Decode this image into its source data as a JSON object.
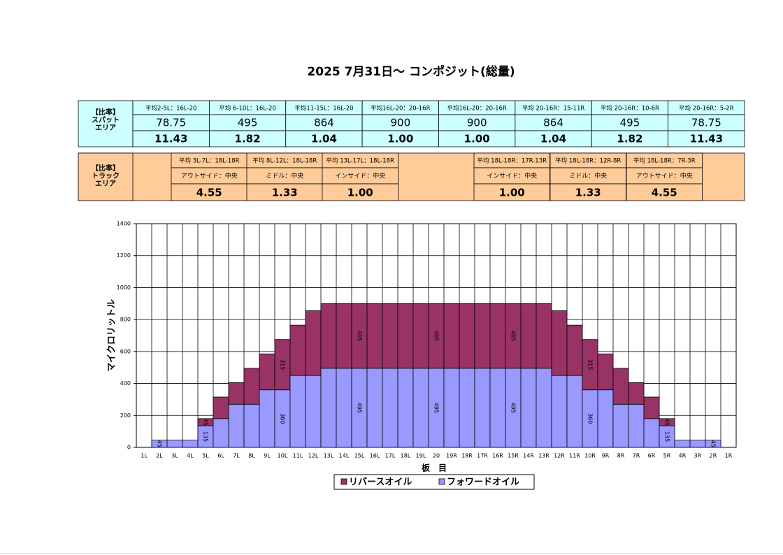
{
  "title": "2025 7月31日～ コンポジット(総量)",
  "spot_table": {
    "label": [
      "【比率】",
      "スパット",
      "エリア"
    ],
    "headers": [
      "平均2-5L：16L-20",
      "平均 6-10L：16L-20",
      "平均11-15L：16L-20",
      "平均16L-20：20-16R",
      "平均16L-20：20-16R",
      "平均 20-16R：15-11R",
      "平均 20-16R：10-6R",
      "平均 20-16R：5-2R"
    ],
    "rows": [
      [
        "78.75",
        "495",
        "864",
        "900",
        "900",
        "864",
        "495",
        "78.75"
      ],
      [
        "11.43",
        "1.82",
        "1.04",
        "1.00",
        "1.00",
        "1.04",
        "1.82",
        "11.43"
      ]
    ]
  },
  "track_table": {
    "label": [
      "【比率】",
      "トラック",
      "エリア"
    ],
    "headers": [
      "平均 3L-7L：18L-18R",
      "平均 8L-12L：18L-18R",
      "平均 13L-17L：18L-18R",
      "平均 18L-18R：17R-13R",
      "平均 18L-18R：12R-8R",
      "平均 18L-18R：7R-3R"
    ],
    "subheaders": [
      "アウトサイド：中央",
      "ミドル：中央",
      "インサイド：中央",
      "インサイド：中央",
      "ミドル：中央",
      "アウトサイド：中央"
    ],
    "values": [
      "4.55",
      "1.33",
      "1.00",
      "1.00",
      "1.33",
      "4.55"
    ]
  },
  "chart_data": {
    "type": "bar",
    "stacked": true,
    "grid": true,
    "legend": "bottom",
    "xlabel": "板　目",
    "ylabel": "マイクロリットル",
    "categories": [
      "1L",
      "2L",
      "3L",
      "4L",
      "5L",
      "6L",
      "7L",
      "8L",
      "9L",
      "10L",
      "11L",
      "12L",
      "13L",
      "14L",
      "15L",
      "16L",
      "17L",
      "18L",
      "19L",
      "20",
      "19R",
      "18R",
      "17R",
      "16R",
      "15R",
      "14R",
      "13R",
      "12R",
      "11R",
      "10R",
      "9R",
      "8R",
      "7R",
      "6R",
      "5R",
      "4R",
      "3R",
      "2R",
      "1R"
    ],
    "ylim": [
      0,
      1400
    ],
    "yticks": [
      0,
      200,
      400,
      600,
      800,
      1000,
      1200,
      1400
    ],
    "series": [
      {
        "name": "フォワードオイル",
        "color": "#9999ff",
        "values": [
          0,
          45,
          45,
          45,
          135,
          180,
          270,
          270,
          360,
          360,
          450,
          450,
          495,
          495,
          495,
          495,
          495,
          495,
          495,
          495,
          495,
          495,
          495,
          495,
          495,
          495,
          495,
          450,
          450,
          360,
          360,
          270,
          270,
          180,
          135,
          45,
          45,
          45,
          0
        ],
        "value_labels": [
          null,
          "45",
          null,
          null,
          "135",
          null,
          null,
          null,
          null,
          "360",
          null,
          null,
          null,
          null,
          "495",
          null,
          null,
          null,
          null,
          "495",
          null,
          null,
          null,
          null,
          "495",
          null,
          null,
          null,
          null,
          "360",
          null,
          null,
          null,
          null,
          "135",
          null,
          null,
          "45",
          null
        ]
      },
      {
        "name": "リバースオイル",
        "color": "#993366",
        "values": [
          0,
          0,
          0,
          0,
          45,
          135,
          135,
          225,
          225,
          315,
          315,
          405,
          405,
          405,
          405,
          405,
          405,
          405,
          405,
          405,
          405,
          405,
          405,
          405,
          405,
          405,
          405,
          405,
          315,
          315,
          225,
          225,
          135,
          135,
          45,
          0,
          0,
          0,
          0
        ],
        "value_labels": [
          null,
          null,
          null,
          null,
          "45",
          null,
          null,
          null,
          null,
          "315",
          null,
          null,
          null,
          null,
          "405",
          null,
          null,
          null,
          null,
          "405",
          null,
          null,
          null,
          null,
          "405",
          null,
          null,
          null,
          null,
          "315",
          null,
          null,
          null,
          null,
          "45",
          null,
          null,
          null,
          null
        ]
      }
    ]
  }
}
